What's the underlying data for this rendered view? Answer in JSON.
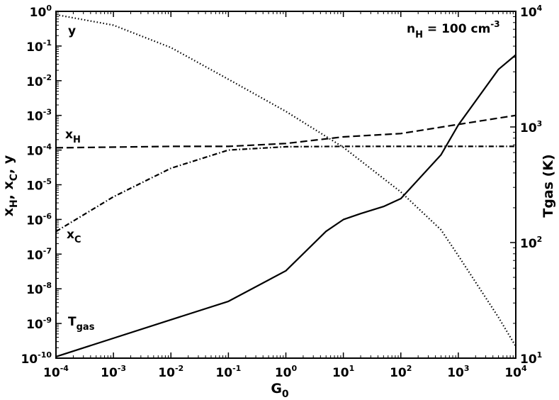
{
  "chart_data": {
    "type": "line",
    "x_axis": {
      "label_main": "G",
      "label_sub": "0",
      "scale": "log",
      "range": [
        0.0001,
        10000
      ],
      "tick_exponents": [
        -4,
        -3,
        -2,
        -1,
        0,
        1,
        2,
        3,
        4
      ]
    },
    "y_left_axis": {
      "scale": "log",
      "range": [
        1e-10,
        1
      ],
      "tick_exponents": [
        -10,
        -9,
        -8,
        -7,
        -6,
        -5,
        -4,
        -3,
        -2,
        -1,
        0
      ]
    },
    "y_right_axis": {
      "label": "Tgas (K)",
      "scale": "log",
      "range": [
        10,
        10000
      ],
      "tick_exponents": [
        1,
        2,
        3,
        4
      ]
    },
    "annotation": {
      "main": "n",
      "sub": "H",
      "rest": " = 100 cm",
      "sup": "-3"
    },
    "grid": false,
    "series": [
      {
        "label_main": "y",
        "label_sub": "",
        "style": "dotted",
        "axis": "left",
        "x": [
          0.0001,
          0.001,
          0.01,
          0.1,
          1,
          10,
          100,
          500,
          1000,
          5000,
          10000
        ],
        "y": [
          0.8,
          0.4,
          0.09,
          0.011,
          0.0013,
          0.00012,
          6.2e-06,
          5e-07,
          9e-08,
          1.5e-09,
          2.2e-10
        ]
      },
      {
        "label_main": "x",
        "label_sub": "H",
        "style": "dashed",
        "axis": "left",
        "x": [
          0.0001,
          0.01,
          0.1,
          1,
          10,
          100,
          1000,
          10000
        ],
        "y": [
          0.000116,
          0.000128,
          0.000128,
          0.000155,
          0.00024,
          0.0003,
          0.00055,
          0.001
        ]
      },
      {
        "label_main": "x",
        "label_sub": "C",
        "style": "dash-dot",
        "axis": "left",
        "x": [
          0.0001,
          0.001,
          0.01,
          0.1,
          1,
          10,
          100,
          1000,
          10000
        ],
        "y": [
          4.5e-07,
          4.5e-06,
          3e-05,
          0.0001,
          0.000125,
          0.000128,
          0.000128,
          0.000128,
          0.000128
        ]
      },
      {
        "label_main": "T",
        "label_sub": "gas",
        "style": "solid",
        "axis": "right",
        "x": [
          0.0001,
          0.01,
          0.1,
          1,
          5,
          10,
          20,
          50,
          100,
          500,
          1000,
          5000,
          10000
        ],
        "y": [
          10.3,
          21.5,
          31,
          57,
          125,
          158,
          178,
          205,
          240,
          575,
          1040,
          3150,
          4200
        ]
      }
    ]
  }
}
